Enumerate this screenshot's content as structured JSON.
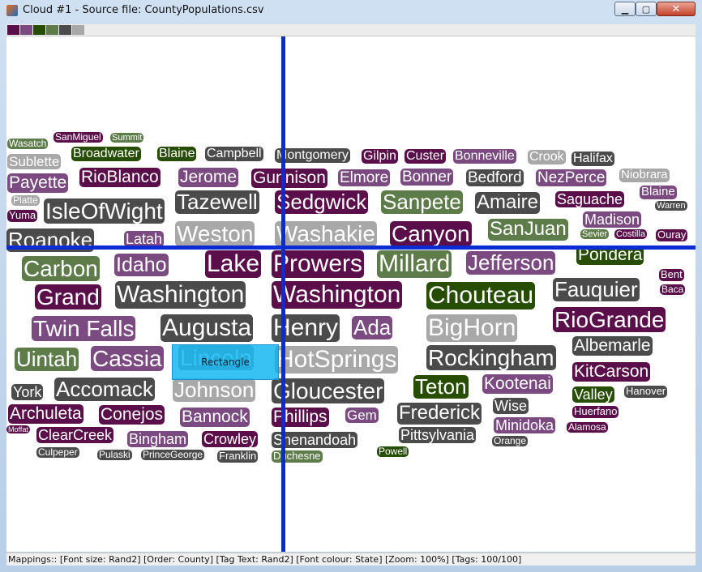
{
  "window": {
    "title": "Cloud #1 - Source file: CountyPopulations.csv",
    "minimize_glyph": "▁",
    "maximize_glyph": "▢",
    "close_glyph": "✕"
  },
  "palette": [
    "#5a0f4a",
    "#7a4a80",
    "#264d00",
    "#5e7b4a",
    "#4b4b4b",
    "#a8a8a8"
  ],
  "colors": {
    "dark_purple": "#5a0f4a",
    "purple": "#7a4a80",
    "dark_green": "#264d00",
    "green": "#5e7b4a",
    "dark_gray": "#4b4b4b",
    "light_gray": "#a8a8a8",
    "crosshair": "#0b2bd6",
    "selection": "#00b0f0"
  },
  "overlay": {
    "rectangle_label": "Rectangle"
  },
  "status_bar": {
    "text": "Mappings:: [Font size: Rand2]  [Order: County]  [Tag Text: Rand2]  [Font colour: State]  [Zoom: 100%]  [Tags: 100/100]"
  },
  "tags": [
    "Wasatch",
    "SanMiguel",
    "Summit",
    "Broadwater",
    "Blaine",
    "Campbell",
    "Montgomery",
    "Gilpin",
    "Custer",
    "Bonneville",
    "Crook",
    "Halifax",
    "Sublette",
    "Payette",
    "RioBlanco",
    "Jerome",
    "Gunnison",
    "Elmore",
    "Bonner",
    "Bedford",
    "NezPerce",
    "Niobrara",
    "Platte",
    "Blaine",
    "Yuma",
    "IsleOfWight",
    "Tazewell",
    "Sedgwick",
    "Sanpete",
    "Amaire",
    "Saguache",
    "Warren",
    "Madison",
    "Roanoke",
    "Latah",
    "Weston",
    "Washakie",
    "Canyon",
    "SanJuan",
    "Sevier",
    "Costilla",
    "Ouray",
    "Carbon",
    "Idaho",
    "Lake",
    "Prowers",
    "Millard",
    "Jefferson",
    "Pondera",
    "Bent",
    "Grand",
    "Washington",
    "Washington",
    "Chouteau",
    "Fauquier",
    "Baca",
    "Twin Falls",
    "Augusta",
    "Henry",
    "Ada",
    "BigHorn",
    "RioGrande",
    "Uintah",
    "Cassia",
    "Lincoln",
    "HotSprings",
    "Rockingham",
    "Albemarle",
    "York",
    "Accomack",
    "Johnson",
    "Gloucester",
    "Teton",
    "Kootenai",
    "KitCarson",
    "Valley",
    "Hanover",
    "Archuleta",
    "Conejos",
    "Bannock",
    "Phillips",
    "Gem",
    "Frederick",
    "Wise",
    "Huerfano",
    "Moffat",
    "ClearCreek",
    "Bingham",
    "Crowley",
    "Shenandoah",
    "Pittsylvania",
    "Minidoka",
    "Alamosa",
    "Culpeper",
    "Pulaski",
    "PrinceGeorge",
    "Franklin",
    "Duchesne",
    "Powell",
    "Orange"
  ]
}
